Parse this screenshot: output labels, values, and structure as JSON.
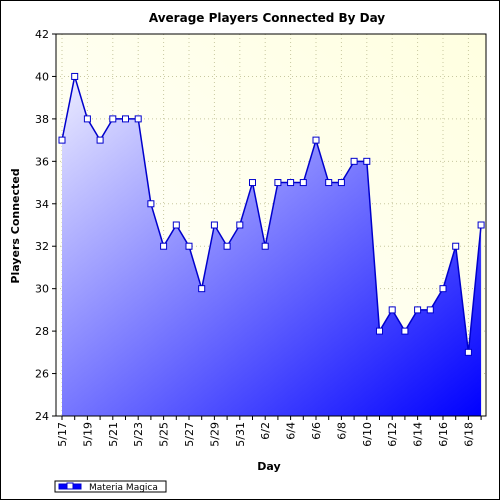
{
  "chart_data": {
    "type": "area",
    "title": "Average Players Connected By Day",
    "xlabel": "Day",
    "ylabel": "Players Connected",
    "ylim": [
      24,
      42
    ],
    "yticks": [
      24,
      26,
      28,
      30,
      32,
      34,
      36,
      38,
      40,
      42
    ],
    "grid": true,
    "legend_position": "bottom-left",
    "x": [
      "5/17",
      "5/18",
      "5/19",
      "5/20",
      "5/21",
      "5/22",
      "5/23",
      "5/24",
      "5/25",
      "5/26",
      "5/27",
      "5/28",
      "5/29",
      "5/30",
      "5/31",
      "6/1",
      "6/2",
      "6/3",
      "6/4",
      "6/5",
      "6/6",
      "6/7",
      "6/8",
      "6/9",
      "6/10",
      "6/11",
      "6/12",
      "6/13",
      "6/14",
      "6/15",
      "6/16",
      "6/17",
      "6/18",
      "6/19"
    ],
    "x_tick_labels": [
      "5/17",
      "",
      "5/19",
      "",
      "5/21",
      "",
      "5/23",
      "",
      "5/25",
      "",
      "5/27",
      "",
      "5/29",
      "",
      "5/31",
      "",
      "6/2",
      "",
      "6/4",
      "",
      "6/6",
      "",
      "6/8",
      "",
      "6/10",
      "",
      "6/12",
      "",
      "6/14",
      "",
      "6/16",
      "",
      "6/18",
      ""
    ],
    "series": [
      {
        "name": "Materia Magica",
        "values": [
          37,
          40,
          38,
          37,
          38,
          38,
          38,
          34,
          32,
          33,
          32,
          30,
          33,
          32,
          33,
          35,
          32,
          35,
          35,
          35,
          37,
          35,
          35,
          36,
          36,
          28,
          29,
          28,
          29,
          29,
          30,
          32,
          27,
          33
        ]
      }
    ],
    "colors": {
      "plot_bg": "#ffffe0",
      "line": "#0000cc",
      "fill_light": "#ececff",
      "fill_dark": "#0000ff",
      "grid": "#c8c8a0"
    }
  }
}
